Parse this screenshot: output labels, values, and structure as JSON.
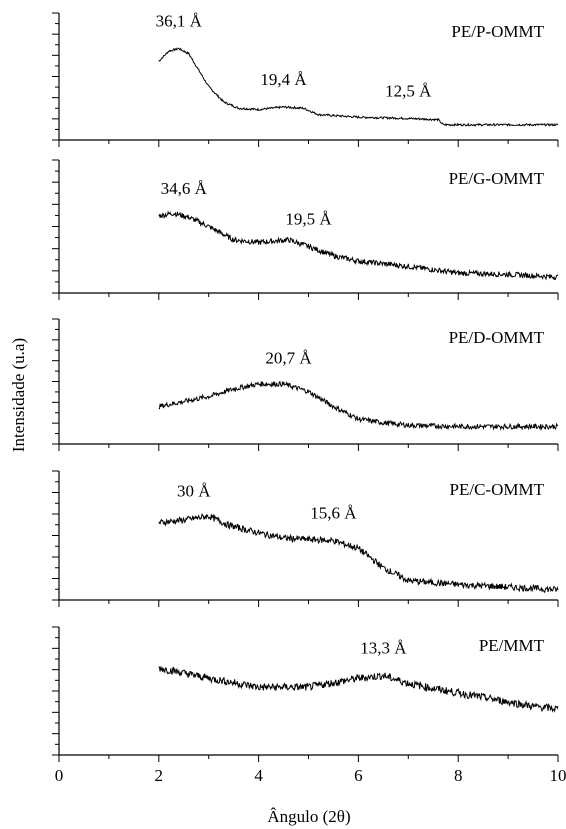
{
  "chart_data": {
    "type": "line",
    "ylabel": "Intensidade (u.a)",
    "xlabel": "Ângulo (2θ)",
    "xlim": [
      0,
      10
    ],
    "xticks": [
      "0",
      "2",
      "4",
      "6",
      "8",
      "10"
    ],
    "grid": false,
    "panels": [
      {
        "name": "PE/P-OMMT",
        "points": [
          [
            2.0,
            0.62
          ],
          [
            2.2,
            0.7
          ],
          [
            2.4,
            0.72
          ],
          [
            2.6,
            0.68
          ],
          [
            2.8,
            0.55
          ],
          [
            3.0,
            0.42
          ],
          [
            3.3,
            0.3
          ],
          [
            3.6,
            0.25
          ],
          [
            4.0,
            0.24
          ],
          [
            4.5,
            0.26
          ],
          [
            4.9,
            0.25
          ],
          [
            5.2,
            0.2
          ],
          [
            6.0,
            0.18
          ],
          [
            7.0,
            0.17
          ],
          [
            7.6,
            0.16
          ],
          [
            7.7,
            0.12
          ],
          [
            8.5,
            0.12
          ],
          [
            9.0,
            0.12
          ],
          [
            10.0,
            0.12
          ]
        ],
        "noise": 0.008,
        "annotations": [
          {
            "text": "36,1 Å",
            "x": 2.4
          },
          {
            "text": "19,4 Å",
            "x": 4.5
          },
          {
            "text": "12,5 Å",
            "x": 7.0
          }
        ]
      },
      {
        "name": "PE/G-OMMT",
        "points": [
          [
            2.0,
            0.58
          ],
          [
            2.3,
            0.6
          ],
          [
            2.6,
            0.57
          ],
          [
            3.0,
            0.5
          ],
          [
            3.5,
            0.4
          ],
          [
            4.0,
            0.38
          ],
          [
            4.6,
            0.4
          ],
          [
            5.0,
            0.35
          ],
          [
            5.5,
            0.28
          ],
          [
            6.0,
            0.24
          ],
          [
            7.0,
            0.2
          ],
          [
            8.0,
            0.15
          ],
          [
            9.0,
            0.14
          ],
          [
            10.0,
            0.12
          ]
        ],
        "noise": 0.02,
        "annotations": [
          {
            "text": "34,6 Å",
            "x": 2.5
          },
          {
            "text": "19,5 Å",
            "x": 5.0
          }
        ]
      },
      {
        "name": "PE/D-OMMT",
        "points": [
          [
            2.0,
            0.3
          ],
          [
            3.0,
            0.38
          ],
          [
            3.5,
            0.44
          ],
          [
            4.0,
            0.48
          ],
          [
            4.5,
            0.48
          ],
          [
            5.0,
            0.42
          ],
          [
            5.5,
            0.3
          ],
          [
            6.0,
            0.2
          ],
          [
            6.5,
            0.17
          ],
          [
            7.0,
            0.15
          ],
          [
            8.0,
            0.14
          ],
          [
            9.0,
            0.14
          ],
          [
            10.0,
            0.14
          ]
        ],
        "noise": 0.02,
        "annotations": [
          {
            "text": "20,7 Å",
            "x": 4.6
          }
        ]
      },
      {
        "name": "PE/C-OMMT",
        "points": [
          [
            2.0,
            0.6
          ],
          [
            2.5,
            0.62
          ],
          [
            3.0,
            0.65
          ],
          [
            3.4,
            0.58
          ],
          [
            4.0,
            0.52
          ],
          [
            4.5,
            0.48
          ],
          [
            5.0,
            0.47
          ],
          [
            5.5,
            0.46
          ],
          [
            6.0,
            0.4
          ],
          [
            6.5,
            0.25
          ],
          [
            7.0,
            0.15
          ],
          [
            8.0,
            0.12
          ],
          [
            9.0,
            0.1
          ],
          [
            10.0,
            0.08
          ]
        ],
        "noise": 0.025,
        "annotations": [
          {
            "text": "30 Å",
            "x": 2.7
          },
          {
            "text": "15,6 Å",
            "x": 5.5
          }
        ]
      },
      {
        "name": "PE/MMT",
        "points": [
          [
            2.0,
            0.68
          ],
          [
            3.0,
            0.6
          ],
          [
            4.0,
            0.53
          ],
          [
            5.0,
            0.53
          ],
          [
            6.0,
            0.6
          ],
          [
            6.5,
            0.62
          ],
          [
            7.0,
            0.56
          ],
          [
            7.5,
            0.52
          ],
          [
            8.5,
            0.45
          ],
          [
            9.5,
            0.38
          ],
          [
            10.0,
            0.36
          ]
        ],
        "noise": 0.03,
        "annotations": [
          {
            "text": "13,3 Å",
            "x": 6.5
          }
        ]
      }
    ]
  }
}
